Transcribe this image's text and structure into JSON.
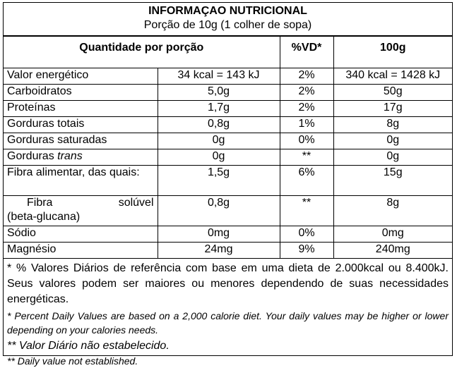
{
  "header": {
    "title": "INFORMAÇAO NUTRICIONAL",
    "serving": "Porção de 10g (1 colher de sopa)"
  },
  "columns": {
    "portion": "Quantidade por porção",
    "dv": "%VD*",
    "per100": "100g"
  },
  "rows": [
    {
      "name": "Valor energético",
      "portion": "34 kcal = 143 kJ",
      "dv": "2%",
      "per100": "340 kcal = 1428 kJ"
    },
    {
      "name": "Carboidratos",
      "portion": "5,0g",
      "dv": "2%",
      "per100": "50g"
    },
    {
      "name": "Proteínas",
      "portion": "1,7g",
      "dv": "2%",
      "per100": "17g"
    },
    {
      "name": "Gorduras totais",
      "portion": "0,8g",
      "dv": "1%",
      "per100": "8g"
    },
    {
      "name": "Gorduras saturadas",
      "portion": "0g",
      "dv": "0%",
      "per100": "0g"
    },
    {
      "name_prefix": "Gorduras ",
      "name_italic": "trans",
      "portion": "0g",
      "dv": "**",
      "per100": "0g"
    },
    {
      "name": "Fibra alimentar, das quais:",
      "portion": "1,5g",
      "dv": "6%",
      "per100": "15g"
    },
    {
      "name_line1": "Fibra solúvel",
      "name_line2": "(beta-glucana)",
      "portion": "0,8g",
      "dv": "**",
      "per100": "8g"
    },
    {
      "name": "Sódio",
      "portion": "0mg",
      "dv": "0%",
      "per100": "0mg"
    },
    {
      "name": "Magnésio",
      "portion": "24mg",
      "dv": "9%",
      "per100": "240mg"
    }
  ],
  "footnotes": {
    "pt_dv": "* % Valores Diários de referência com base em uma dieta de 2.000kcal ou 8.400kJ. Seus valores podem ser maiores ou menores dependendo de suas necessidades energéticas.",
    "en_dv": "* Percent Daily Values are based on a 2,000 calorie diet. Your daily values may be higher or lower depending on your calories needs.",
    "pt_na": "** Valor Diário não estabelecido.",
    "en_na": "** Daily value not established."
  }
}
